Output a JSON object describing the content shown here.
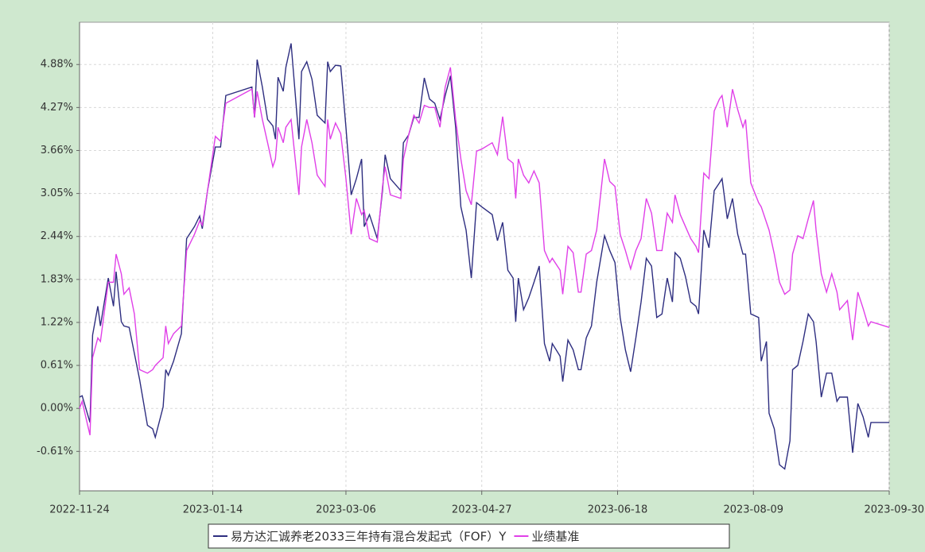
{
  "chart_data": {
    "type": "line",
    "x": [
      "2022-11-24",
      "2022-11-25",
      "2022-11-28",
      "2022-11-29",
      "2022-12-01",
      "2022-12-02",
      "2022-12-05",
      "2022-12-07",
      "2022-12-08",
      "2022-12-10",
      "2022-12-11",
      "2022-12-13",
      "2022-12-15",
      "2022-12-17",
      "2022-12-20",
      "2022-12-22",
      "2022-12-23",
      "2022-12-26",
      "2022-12-27",
      "2022-12-28",
      "2022-12-30",
      "2023-01-02",
      "2023-01-04",
      "2023-01-07",
      "2023-01-09",
      "2023-01-10",
      "2023-01-12",
      "2023-01-15",
      "2023-01-17",
      "2023-01-19",
      "2023-01-29",
      "2023-01-30",
      "2023-01-31",
      "2023-02-02",
      "2023-02-04",
      "2023-02-06",
      "2023-02-07",
      "2023-02-08",
      "2023-02-10",
      "2023-02-11",
      "2023-02-13",
      "2023-02-16",
      "2023-02-17",
      "2023-02-19",
      "2023-02-21",
      "2023-02-23",
      "2023-02-26",
      "2023-02-27",
      "2023-02-28",
      "2023-03-02",
      "2023-03-04",
      "2023-03-06",
      "2023-03-08",
      "2023-03-10",
      "2023-03-12",
      "2023-03-13",
      "2023-03-15",
      "2023-03-18",
      "2023-03-20",
      "2023-03-21",
      "2023-03-23",
      "2023-03-27",
      "2023-03-28",
      "2023-03-30",
      "2023-04-01",
      "2023-04-03",
      "2023-04-05",
      "2023-04-07",
      "2023-04-09",
      "2023-04-11",
      "2023-04-13",
      "2023-04-15",
      "2023-04-17",
      "2023-04-19",
      "2023-04-21",
      "2023-04-23",
      "2023-04-25",
      "2023-04-27",
      "2023-05-01",
      "2023-05-03",
      "2023-05-05",
      "2023-05-07",
      "2023-05-09",
      "2023-05-10",
      "2023-05-11",
      "2023-05-13",
      "2023-05-15",
      "2023-05-17",
      "2023-05-19",
      "2023-05-21",
      "2023-05-23",
      "2023-05-24",
      "2023-05-27",
      "2023-05-28",
      "2023-05-30",
      "2023-06-01",
      "2023-06-03",
      "2023-06-04",
      "2023-06-06",
      "2023-06-08",
      "2023-06-10",
      "2023-06-13",
      "2023-06-15",
      "2023-06-17",
      "2023-06-19",
      "2023-06-21",
      "2023-06-23",
      "2023-06-25",
      "2023-06-27",
      "2023-06-29",
      "2023-07-01",
      "2023-07-03",
      "2023-07-05",
      "2023-07-07",
      "2023-07-09",
      "2023-07-10",
      "2023-07-12",
      "2023-07-14",
      "2023-07-16",
      "2023-07-18",
      "2023-07-19",
      "2023-07-21",
      "2023-07-23",
      "2023-07-25",
      "2023-07-27",
      "2023-07-28",
      "2023-07-30",
      "2023-08-01",
      "2023-08-03",
      "2023-08-05",
      "2023-08-06",
      "2023-08-08",
      "2023-08-11",
      "2023-08-12",
      "2023-08-14",
      "2023-08-15",
      "2023-08-17",
      "2023-08-19",
      "2023-08-21",
      "2023-08-23",
      "2023-08-24",
      "2023-08-26",
      "2023-08-28",
      "2023-08-30",
      "2023-09-01",
      "2023-09-02",
      "2023-09-04",
      "2023-09-06",
      "2023-09-08",
      "2023-09-10",
      "2023-09-11",
      "2023-09-14",
      "2023-09-16",
      "2023-09-18",
      "2023-09-20",
      "2023-09-22",
      "2023-09-23",
      "2023-09-30"
    ],
    "series": [
      {
        "name": "易方达汇诚养老2033三年持有混合发起式（FOF）Y",
        "color": "#2e2e80",
        "values": [
          0.16,
          0.18,
          -0.2,
          1.04,
          1.45,
          1.17,
          1.85,
          1.45,
          1.94,
          1.23,
          1.17,
          1.15,
          0.78,
          0.41,
          -0.24,
          -0.29,
          -0.41,
          0.02,
          0.55,
          0.47,
          0.67,
          1.06,
          2.41,
          2.58,
          2.73,
          2.55,
          3.09,
          3.71,
          3.71,
          4.44,
          4.56,
          4.13,
          4.95,
          4.56,
          4.1,
          4.01,
          3.82,
          4.7,
          4.5,
          4.84,
          5.18,
          3.82,
          4.78,
          4.92,
          4.67,
          4.16,
          4.05,
          4.92,
          4.78,
          4.87,
          4.86,
          3.99,
          3.03,
          3.26,
          3.54,
          2.58,
          2.75,
          2.41,
          3.09,
          3.6,
          3.26,
          3.09,
          3.77,
          3.88,
          4.13,
          4.13,
          4.69,
          4.39,
          4.33,
          4.1,
          4.44,
          4.72,
          3.99,
          2.86,
          2.53,
          1.85,
          2.92,
          2.86,
          2.75,
          2.38,
          2.64,
          1.96,
          1.85,
          1.23,
          1.85,
          1.4,
          1.57,
          1.79,
          2.02,
          0.92,
          0.67,
          0.92,
          0.74,
          0.38,
          0.97,
          0.83,
          0.55,
          0.55,
          1.0,
          1.17,
          1.79,
          2.45,
          2.24,
          2.07,
          1.29,
          0.83,
          0.52,
          1.0,
          1.51,
          2.13,
          2.02,
          1.29,
          1.34,
          1.85,
          1.51,
          2.21,
          2.13,
          1.87,
          1.51,
          1.45,
          1.34,
          2.53,
          2.28,
          3.09,
          3.2,
          3.26,
          2.69,
          2.98,
          2.47,
          2.19,
          2.19,
          1.34,
          1.29,
          0.67,
          0.95,
          -0.07,
          -0.29,
          -0.8,
          -0.86,
          -0.46,
          0.55,
          0.61,
          0.95,
          1.34,
          1.23,
          0.95,
          0.16,
          0.5,
          0.5,
          0.1,
          0.16,
          0.16,
          -0.63,
          0.07,
          -0.12,
          -0.41,
          -0.2,
          -0.2
        ]
      },
      {
        "name": "业绩基准",
        "color": "#e040e8",
        "values": [
          0.0,
          0.1,
          -0.38,
          0.72,
          1.0,
          0.95,
          1.79,
          1.79,
          2.19,
          1.91,
          1.62,
          1.71,
          1.34,
          0.55,
          0.5,
          0.55,
          0.61,
          0.72,
          1.17,
          0.92,
          1.06,
          1.17,
          2.24,
          2.47,
          2.66,
          2.6,
          3.09,
          3.86,
          3.79,
          4.33,
          4.53,
          4.13,
          4.5,
          4.1,
          3.77,
          3.43,
          3.54,
          3.99,
          3.77,
          3.99,
          4.1,
          3.03,
          3.71,
          4.1,
          3.77,
          3.31,
          3.15,
          4.1,
          3.82,
          4.05,
          3.9,
          3.26,
          2.47,
          2.98,
          2.75,
          2.81,
          2.41,
          2.36,
          3.15,
          3.43,
          3.03,
          2.98,
          3.54,
          3.88,
          4.16,
          4.05,
          4.3,
          4.27,
          4.27,
          3.99,
          4.56,
          4.84,
          4.1,
          3.54,
          3.09,
          2.89,
          3.65,
          3.68,
          3.77,
          3.6,
          4.14,
          3.54,
          3.48,
          2.98,
          3.54,
          3.31,
          3.2,
          3.37,
          3.2,
          2.24,
          2.07,
          2.13,
          1.96,
          1.62,
          2.3,
          2.21,
          1.65,
          1.65,
          2.19,
          2.24,
          2.53,
          3.54,
          3.22,
          3.15,
          2.47,
          2.24,
          1.98,
          2.24,
          2.41,
          2.98,
          2.77,
          2.24,
          2.24,
          2.77,
          2.64,
          3.03,
          2.75,
          2.58,
          2.41,
          2.3,
          2.21,
          3.34,
          3.26,
          4.22,
          4.39,
          4.44,
          3.99,
          4.53,
          4.24,
          3.99,
          4.1,
          3.2,
          2.92,
          2.86,
          2.64,
          2.53,
          2.19,
          1.79,
          1.62,
          1.68,
          2.19,
          2.45,
          2.41,
          2.69,
          2.95,
          2.53,
          1.91,
          1.65,
          1.91,
          1.65,
          1.4,
          1.53,
          0.97,
          1.65,
          1.42,
          1.17,
          1.23,
          1.15
        ]
      }
    ],
    "xlim": [
      "2022-11-24",
      "2023-09-30"
    ],
    "xticks": [
      "2022-11-24",
      "2023-01-14",
      "2023-03-06",
      "2023-04-27",
      "2023-06-18",
      "2023-08-09",
      "2023-09-30"
    ],
    "ylim": [
      -1.17,
      5.48
    ],
    "yticks": [
      {
        "value": -0.61,
        "label": "-0.61%"
      },
      {
        "value": 0.0,
        "label": "0.00%"
      },
      {
        "value": 0.61,
        "label": "0.61%"
      },
      {
        "value": 1.22,
        "label": "1.22%"
      },
      {
        "value": 1.83,
        "label": "1.83%"
      },
      {
        "value": 2.44,
        "label": "2.44%"
      },
      {
        "value": 3.05,
        "label": "3.05%"
      },
      {
        "value": 3.66,
        "label": "3.66%"
      },
      {
        "value": 4.27,
        "label": "4.27%"
      },
      {
        "value": 4.88,
        "label": "4.88%"
      }
    ],
    "grid": true
  }
}
